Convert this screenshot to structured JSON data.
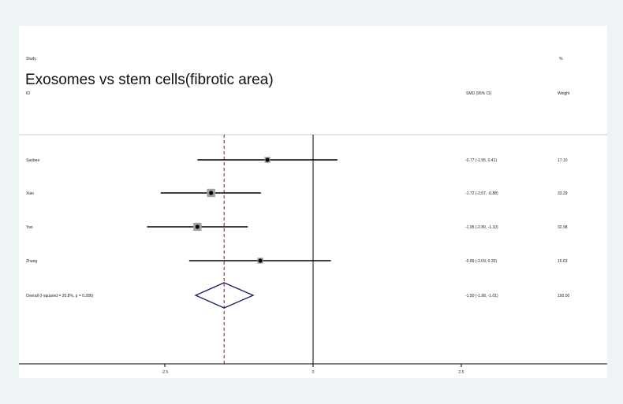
{
  "chart_data": {
    "type": "forest",
    "title": "Exosomes vs stem cells(fibrotic area)",
    "header": {
      "study_label": "Study",
      "id_label": "ID",
      "effect_label": "SMD (95% CI)",
      "weight_top_label": "%",
      "weight_label": "Weight"
    },
    "studies": [
      {
        "name": "Sanbee",
        "effect": -0.77,
        "ci_low": -1.95,
        "ci_high": 0.41,
        "weight": 17.1,
        "ci_text": "-0.77 (-1.95, 0.41)",
        "weight_text": "17.10"
      },
      {
        "name": "Xiao",
        "effect": -1.72,
        "ci_low": -2.57,
        "ci_high": -0.88,
        "weight": 33.29,
        "ci_text": "-1.72 (-2.57, -0.88)",
        "weight_text": "33.29"
      },
      {
        "name": "Yao",
        "effect": -1.95,
        "ci_low": -2.8,
        "ci_high": -1.1,
        "weight": 32.98,
        "ci_text": "-1.95 (-2.80, -1.10)",
        "weight_text": "32.98"
      },
      {
        "name": "Zhang",
        "effect": -0.89,
        "ci_low": -2.09,
        "ci_high": 0.3,
        "weight": 16.63,
        "ci_text": "-0.89 (-2.09, 0.30)",
        "weight_text": "16.63"
      }
    ],
    "overall": {
      "label": "Overall  (I-squared = 20.8%, p = 0.286)",
      "effect": -1.5,
      "ci_low": -1.98,
      "ci_high": -1.01,
      "ci_text": "-1.50 (-1.98, -1.01)",
      "weight_text": "100.00"
    },
    "x_ticks": [
      -2.5,
      0,
      2.5
    ],
    "x_tick_labels": [
      "-2.5",
      "0",
      "2.5"
    ],
    "xlim": [
      -5.0,
      5.0
    ],
    "null_line": 0,
    "reference_line": -1.5,
    "colors": {
      "background": "#eef3f5",
      "panel": "#ffffff",
      "line": "#000000",
      "box": "#a0a0a0",
      "diamond": "#1a1a6e",
      "reference": "#8b1a1a"
    }
  }
}
